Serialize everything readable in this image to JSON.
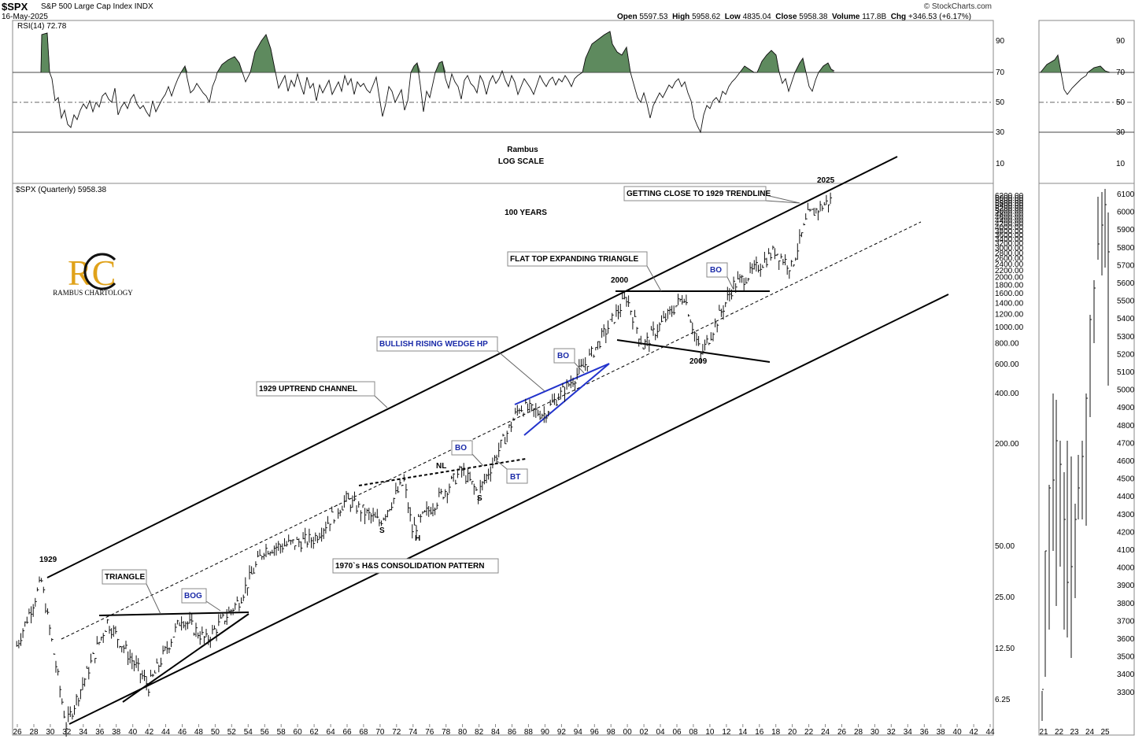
{
  "header": {
    "symbol": "$SPX",
    "name": "S&P 500 Large Cap Index",
    "exchange": "INDX",
    "date": "16-May-2025",
    "credit": "© StockCharts.com",
    "open_label": "Open",
    "open": "5597.53",
    "high_label": "High",
    "high": "5958.62",
    "low_label": "Low",
    "low": "4835.04",
    "close_label": "Close",
    "close": "5958.38",
    "volume_label": "Volume",
    "volume": "117.8B",
    "chg_label": "Chg",
    "chg": "+346.53 (+6.17%)"
  },
  "rsi_panel": {
    "label": "RSI(14) 72.78",
    "levels": [
      "90",
      "70",
      "50",
      "30",
      "10"
    ],
    "right_levels": [
      "90",
      "70",
      "50",
      "30",
      "10"
    ]
  },
  "center_labels": {
    "author": "Rambus",
    "scale": "LOG SCALE",
    "span": "100 YEARS"
  },
  "logo": {
    "initials": "RC",
    "name": "RAMBUS CHARTOLOGY"
  },
  "price_panel": {
    "label": "$SPX (Quarterly) 5958.38",
    "y_ticks": [
      "6.25",
      "12.50",
      "25.00",
      "50.00",
      "200.00",
      "400.00",
      "600.00",
      "800.00",
      "1000.00",
      "1200.00",
      "1400.00",
      "1600.00",
      "1800.00",
      "2000.00",
      "2200.00",
      "2400.00",
      "2600.00",
      "2800.00",
      "3000.00",
      "3200.00",
      "3400.00",
      "3600.00",
      "3800.00",
      "4000.00",
      "4200.00",
      "4400.00",
      "4600.00",
      "4800.00",
      "5000.00",
      "5200.00",
      "5400.00",
      "5600.00",
      "5800.00",
      "6000.00",
      "6200.00"
    ],
    "x_ticks": [
      "26",
      "28",
      "30",
      "32",
      "34",
      "36",
      "38",
      "40",
      "42",
      "44",
      "46",
      "48",
      "50",
      "52",
      "54",
      "56",
      "58",
      "60",
      "62",
      "64",
      "66",
      "68",
      "70",
      "72",
      "74",
      "76",
      "78",
      "80",
      "82",
      "84",
      "86",
      "88",
      "90",
      "92",
      "94",
      "96",
      "98",
      "00",
      "02",
      "04",
      "06",
      "08",
      "10",
      "12",
      "14",
      "16",
      "18",
      "20",
      "22",
      "24",
      "26",
      "28",
      "30",
      "32",
      "34",
      "36",
      "38",
      "40",
      "42",
      "44"
    ]
  },
  "annotations": {
    "getting_close": "GETTING CLOSE TO 1929 TRENDLINE",
    "flat_top": "FLAT TOP EXPANDING TRIANGLE",
    "bullish_wedge": "BULLISH RISING WEDGE HP",
    "uptrend_channel": "1929 UPTREND CHANNEL",
    "triangle": "TRIANGLE",
    "bog": "BOG",
    "hs": "1970`s H&S CONSOLIDATION PATTERN",
    "bo1": "BO",
    "bo2": "BO",
    "bo3": "BO",
    "bt": "BT",
    "y1929": "1929",
    "y2000": "2000",
    "y2009": "2009",
    "y2025": "2025",
    "s1": "S",
    "h": "H",
    "s2": "S",
    "nl": "NL"
  },
  "side_panel": {
    "y_ticks": [
      "6100",
      "6000",
      "5900",
      "5800",
      "5700",
      "5600",
      "5500",
      "5400",
      "5300",
      "5200",
      "5100",
      "5000",
      "4900",
      "4800",
      "4700",
      "4600",
      "4500",
      "4400",
      "4300",
      "4200",
      "4100",
      "4000",
      "3900",
      "3800",
      "3700",
      "3600",
      "3500",
      "3400",
      "3300"
    ],
    "x_ticks": [
      "21",
      "22",
      "23",
      "24",
      "25"
    ]
  },
  "chart_data": {
    "type": "line",
    "title": "$SPX (Quarterly) 5958.38",
    "log_scale": true,
    "series": [
      {
        "name": "$SPX (Quarterly)",
        "x": [
          1926,
          1929,
          1932,
          1937,
          1942,
          1946,
          1949,
          1953,
          1956,
          1962,
          1966,
          1970,
          1973,
          1974,
          1980,
          1982,
          1987,
          1990,
          1995,
          2000,
          2002,
          2007,
          2009,
          2013,
          2015,
          2018,
          2020,
          2022,
          2025
        ],
        "values": [
          13,
          31,
          4.4,
          18,
          7.5,
          19,
          14,
          24,
          48,
          55,
          94,
          69,
          120,
          62,
          140,
          102,
          330,
          300,
          600,
          1520,
          770,
          1560,
          676,
          1800,
          2100,
          2900,
          2300,
          4700,
          5958
        ]
      },
      {
        "name": "RSI(14)",
        "x": [
          1926,
          1928,
          1932,
          1937,
          1942,
          1946,
          1950,
          1955,
          1959,
          1962,
          1966,
          1970,
          1974,
          1980,
          1982,
          1987,
          1990,
          1995,
          1998,
          2000,
          2002,
          2008,
          2013,
          2018,
          2020,
          2022,
          2025
        ],
        "values": [
          50,
          95,
          30,
          55,
          35,
          72,
          44,
          80,
          52,
          42,
          72,
          40,
          30,
          55,
          36,
          75,
          48,
          60,
          96,
          80,
          38,
          30,
          70,
          85,
          60,
          82,
          72.78
        ]
      }
    ]
  }
}
